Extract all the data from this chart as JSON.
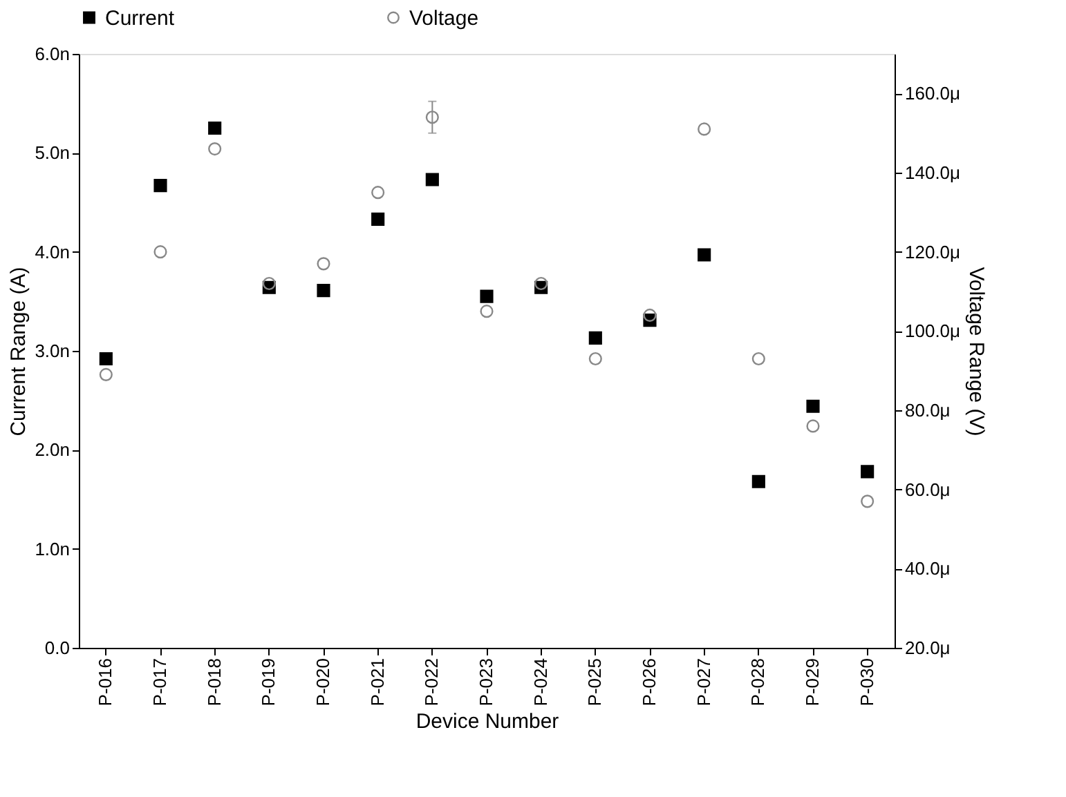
{
  "chart_data": {
    "type": "scatter",
    "xlabel": "Device Number",
    "ylabel": "Current Range (A)",
    "y2label": "Voltage Range (V)",
    "categories": [
      "P-016",
      "P-017",
      "P-018",
      "P-019",
      "P-020",
      "P-021",
      "P-022",
      "P-023",
      "P-024",
      "P-025",
      "P-026",
      "P-027",
      "P-028",
      "P-029",
      "P-030"
    ],
    "series": [
      {
        "name": "Current",
        "color": "#000000",
        "marker": "square",
        "values": [
          2.92,
          4.67,
          5.25,
          3.64,
          3.61,
          4.33,
          4.73,
          3.55,
          3.64,
          3.13,
          3.31,
          3.97,
          1.68,
          2.44,
          1.78
        ]
      },
      {
        "name": "Voltage",
        "color": "#888888",
        "marker": "circle",
        "axis": "y2",
        "values": [
          89,
          120,
          146,
          112,
          117,
          135,
          154,
          105,
          112,
          93,
          104,
          151,
          93,
          76,
          57
        ],
        "errors": [
          null,
          null,
          null,
          null,
          null,
          null,
          [
            150,
            158
          ],
          null,
          null,
          null,
          null,
          null,
          null,
          null,
          null
        ]
      }
    ],
    "ylim": [
      0,
      6
    ],
    "yticks": [
      {
        "value": 0,
        "label": "0.0"
      },
      {
        "value": 1,
        "label": "1.0n"
      },
      {
        "value": 2,
        "label": "2.0n"
      },
      {
        "value": 3,
        "label": "3.0n"
      },
      {
        "value": 4,
        "label": "4.0n"
      },
      {
        "value": 5,
        "label": "5.0n"
      },
      {
        "value": 6,
        "label": "6.0n"
      }
    ],
    "y2lim": [
      20,
      170
    ],
    "y2ticks": [
      {
        "value": 20,
        "label": "20.0μ"
      },
      {
        "value": 40,
        "label": "40.0μ"
      },
      {
        "value": 60,
        "label": "60.0μ"
      },
      {
        "value": 80,
        "label": "80.0μ"
      },
      {
        "value": 100,
        "label": "100.0μ"
      },
      {
        "value": 120,
        "label": "120.0μ"
      },
      {
        "value": 140,
        "label": "140.0μ"
      },
      {
        "value": 160,
        "label": "160.0μ"
      }
    ],
    "grid": false,
    "legend": "top"
  }
}
